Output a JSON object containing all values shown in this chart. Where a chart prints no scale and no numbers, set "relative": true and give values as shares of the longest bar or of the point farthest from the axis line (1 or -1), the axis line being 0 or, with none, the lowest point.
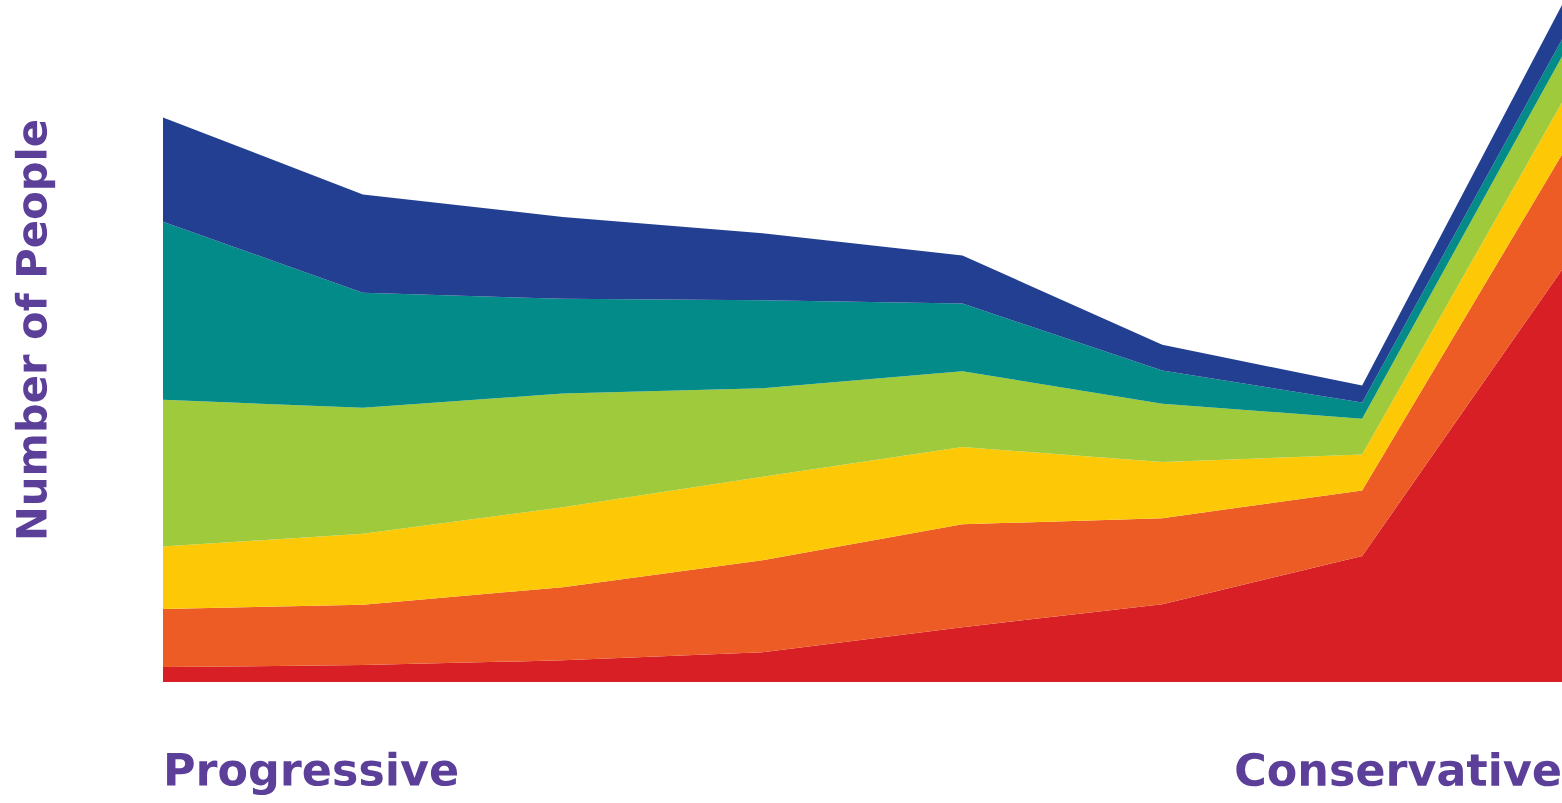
{
  "chart_data": {
    "type": "area",
    "stacked": true,
    "relative": true,
    "ylabel": "Number of People",
    "legend": false,
    "annotations": [
      "Progressive",
      "Conservative"
    ],
    "categories": [
      null,
      null,
      null,
      null,
      null,
      null,
      null,
      null
    ],
    "series": [
      {
        "color": "#d81f26",
        "values": [
          0.022,
          0.025,
          0.032,
          0.044,
          0.081,
          0.115,
          0.186,
          0.609
        ]
      },
      {
        "color": "#ec5c24",
        "values": [
          0.086,
          0.089,
          0.108,
          0.136,
          0.152,
          0.127,
          0.097,
          0.17
        ]
      },
      {
        "color": "#fdc907",
        "values": [
          0.092,
          0.105,
          0.118,
          0.123,
          0.114,
          0.083,
          0.053,
          0.077
        ]
      },
      {
        "color": "#9fca3c",
        "values": [
          0.217,
          0.186,
          0.168,
          0.131,
          0.112,
          0.086,
          0.053,
          0.068
        ]
      },
      {
        "color": "#038b8a",
        "values": [
          0.263,
          0.17,
          0.14,
          0.13,
          0.1,
          0.049,
          0.024,
          0.025
        ]
      },
      {
        "color": "#233f92",
        "values": [
          0.154,
          0.145,
          0.121,
          0.099,
          0.071,
          0.038,
          0.025,
          0.051
        ]
      }
    ]
  }
}
